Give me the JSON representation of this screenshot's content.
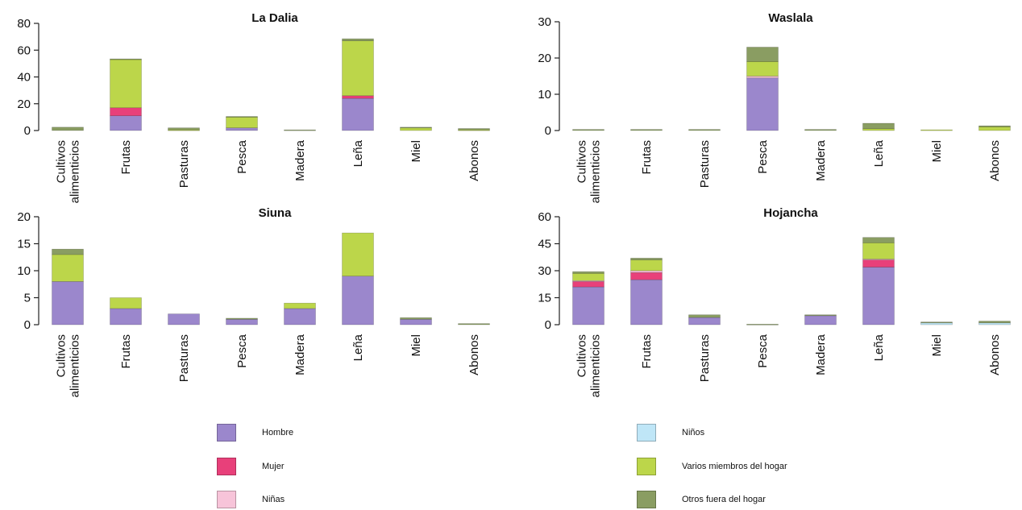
{
  "colors": {
    "Hombre": "#9b87cc",
    "Mujer": "#e8407a",
    "Niñas": "#f7c4d9",
    "Niños": "#bfe6f7",
    "Varios miembros del hogar": "#bcd64a",
    "Otros fuera del hogar": "#8a9d62"
  },
  "legend": {
    "items": [
      {
        "label": "Hombre",
        "color": "#9b87cc"
      },
      {
        "label": "Mujer",
        "color": "#e8407a"
      },
      {
        "label": "Niñas",
        "color": "#f7c4d9"
      },
      {
        "label": "Niños",
        "color": "#bfe6f7"
      },
      {
        "label": "Varios miembros del hogar",
        "color": "#bcd64a"
      },
      {
        "label": "Otros fuera del hogar",
        "color": "#8a9d62"
      }
    ]
  },
  "chart_data": [
    {
      "type": "bar",
      "stacked": true,
      "title": "La Dalia",
      "categories": [
        "Cultivos alimenticios",
        "Frutas",
        "Pasturas",
        "Pesca",
        "Madera",
        "Leña",
        "Miel",
        "Abonos"
      ],
      "ylim": [
        0,
        80
      ],
      "yticks": [
        0,
        20,
        40,
        60,
        80
      ],
      "series": [
        {
          "name": "Hombre",
          "values": [
            0,
            11,
            0,
            2,
            0,
            24,
            0,
            0
          ]
        },
        {
          "name": "Mujer",
          "values": [
            0,
            6,
            0,
            0,
            0,
            2,
            0,
            0
          ]
        },
        {
          "name": "Niñas",
          "values": [
            0,
            0,
            0,
            0,
            0,
            0,
            0,
            0
          ]
        },
        {
          "name": "Niños",
          "values": [
            0,
            0,
            0,
            0,
            0,
            0,
            0,
            0
          ]
        },
        {
          "name": "Varios miembros del hogar",
          "values": [
            0,
            36,
            0.5,
            8,
            0,
            41,
            2,
            0.5
          ]
        },
        {
          "name": "Otros fuera del hogar",
          "values": [
            2.5,
            0.5,
            1.5,
            0.5,
            0.5,
            1.5,
            0.5,
            1
          ]
        }
      ]
    },
    {
      "type": "bar",
      "stacked": true,
      "title": "Waslala",
      "categories": [
        "Cultivos alimenticios",
        "Frutas",
        "Pasturas",
        "Pesca",
        "Madera",
        "Leña",
        "Miel",
        "Abonos"
      ],
      "ylim": [
        0,
        30
      ],
      "yticks": [
        0,
        10,
        20,
        30
      ],
      "series": [
        {
          "name": "Hombre",
          "values": [
            0,
            0,
            0,
            14.5,
            0,
            0,
            0,
            0
          ]
        },
        {
          "name": "Mujer",
          "values": [
            0,
            0,
            0,
            0,
            0,
            0,
            0,
            0
          ]
        },
        {
          "name": "Niñas",
          "values": [
            0,
            0,
            0,
            0.5,
            0,
            0,
            0,
            0
          ]
        },
        {
          "name": "Niños",
          "values": [
            0,
            0,
            0,
            0,
            0,
            0,
            0,
            0
          ]
        },
        {
          "name": "Varios miembros del hogar",
          "values": [
            0,
            0,
            0,
            4,
            0,
            0.5,
            0.2,
            1
          ]
        },
        {
          "name": "Otros fuera del hogar",
          "values": [
            0.3,
            0.3,
            0.3,
            4,
            0.3,
            1.5,
            0,
            0.3
          ]
        }
      ]
    },
    {
      "type": "bar",
      "stacked": true,
      "title": "Siuna",
      "categories": [
        "Cultivos alimenticios",
        "Frutas",
        "Pasturas",
        "Pesca",
        "Madera",
        "Leña",
        "Miel",
        "Abonos"
      ],
      "ylim": [
        0,
        20
      ],
      "yticks": [
        0,
        5,
        10,
        15,
        20
      ],
      "series": [
        {
          "name": "Hombre",
          "values": [
            8,
            3,
            2,
            1,
            3,
            9,
            1,
            0
          ]
        },
        {
          "name": "Mujer",
          "values": [
            0,
            0,
            0,
            0,
            0,
            0,
            0,
            0
          ]
        },
        {
          "name": "Niñas",
          "values": [
            0,
            0,
            0,
            0,
            0,
            0,
            0,
            0
          ]
        },
        {
          "name": "Niños",
          "values": [
            0,
            0,
            0,
            0,
            0,
            0,
            0,
            0
          ]
        },
        {
          "name": "Varios miembros del hogar",
          "values": [
            5,
            2,
            0,
            0,
            1,
            8,
            0,
            0
          ]
        },
        {
          "name": "Otros fuera del hogar",
          "values": [
            1,
            0,
            0,
            0.2,
            0,
            0,
            0.3,
            0.2
          ]
        }
      ]
    },
    {
      "type": "bar",
      "stacked": true,
      "title": "Hojancha",
      "categories": [
        "Cultivos alimenticios",
        "Frutas",
        "Pasturas",
        "Pesca",
        "Madera",
        "Leña",
        "Miel",
        "Abonos"
      ],
      "ylim": [
        0,
        60
      ],
      "yticks": [
        0,
        15,
        30,
        45,
        60
      ],
      "series": [
        {
          "name": "Hombre",
          "values": [
            21,
            25,
            4,
            0,
            5,
            32,
            0,
            0
          ]
        },
        {
          "name": "Mujer",
          "values": [
            3,
            4,
            0,
            0,
            0,
            4,
            0,
            0
          ]
        },
        {
          "name": "Niñas",
          "values": [
            0.5,
            1,
            0,
            0,
            0,
            0.5,
            0,
            0
          ]
        },
        {
          "name": "Niños",
          "values": [
            0,
            0,
            0,
            0,
            0,
            0,
            1,
            1
          ]
        },
        {
          "name": "Varios miembros del hogar",
          "values": [
            4,
            6,
            0,
            0,
            0,
            9,
            0,
            0
          ]
        },
        {
          "name": "Otros fuera del hogar",
          "values": [
            1,
            1,
            1.5,
            0.3,
            0.5,
            3,
            0.5,
            1
          ]
        }
      ]
    }
  ]
}
